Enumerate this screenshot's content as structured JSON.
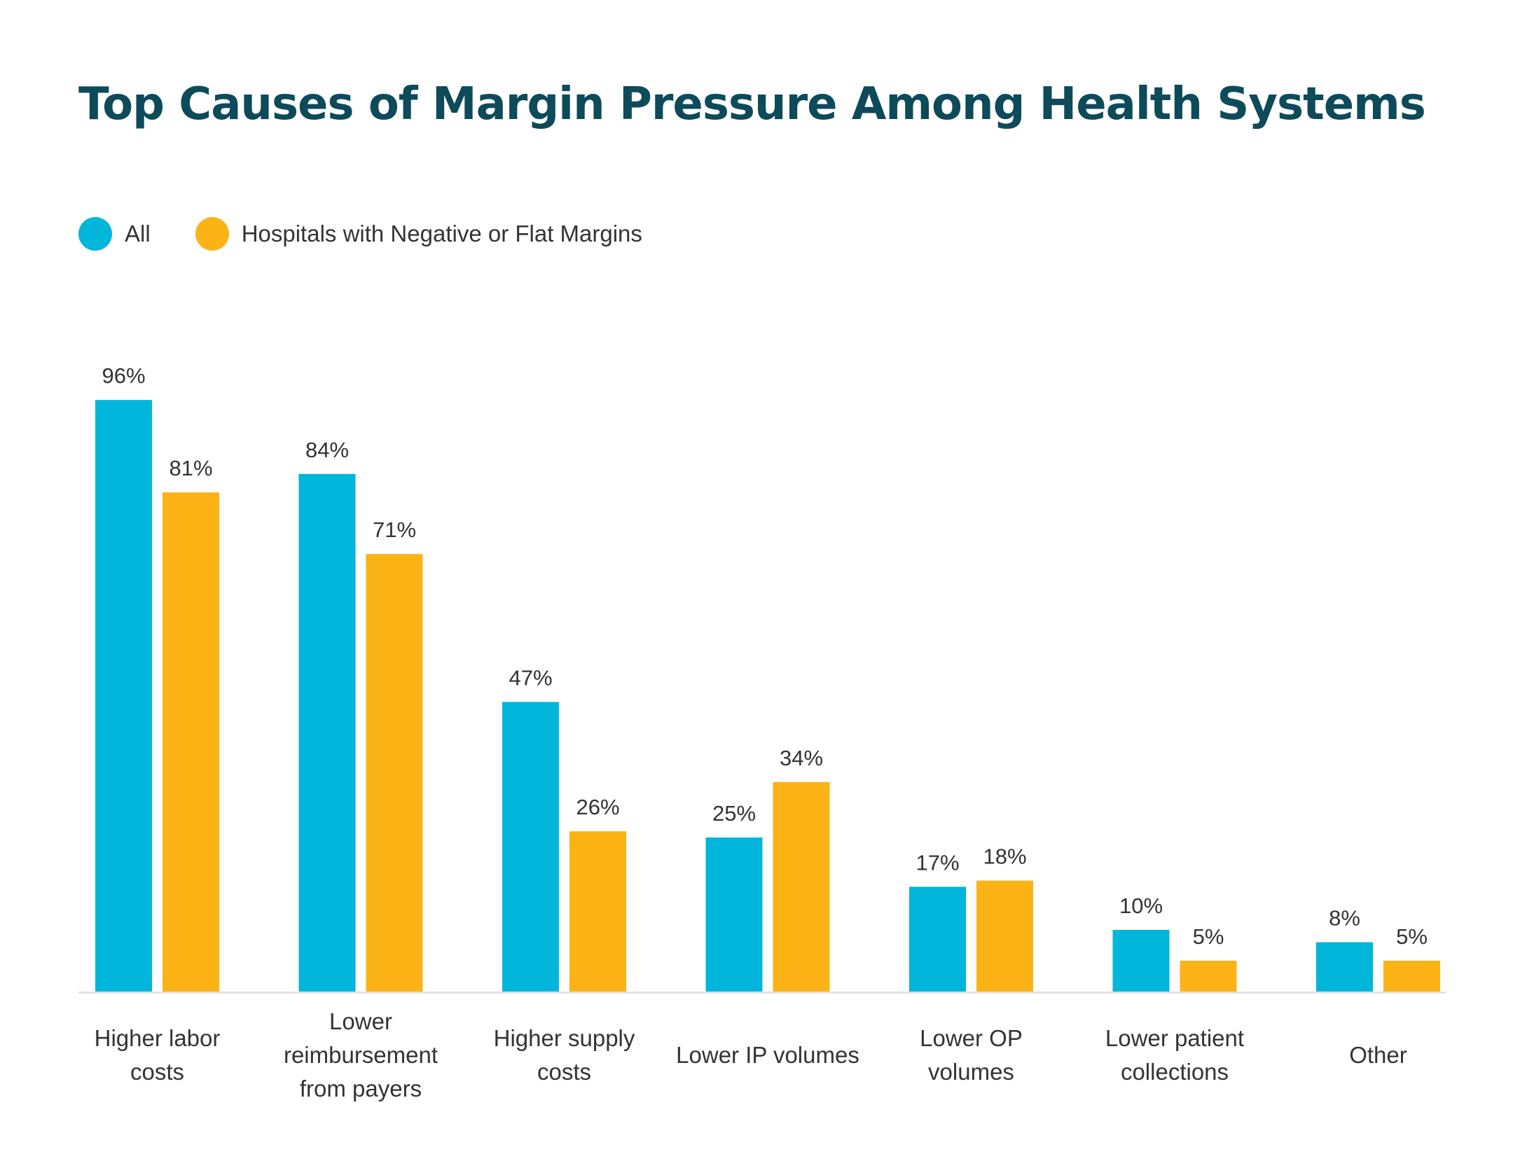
{
  "chart_data": {
    "type": "bar",
    "title": "Top Causes of Margin Pressure Among Health Systems",
    "categories": [
      [
        "Higher labor",
        "costs"
      ],
      [
        "Lower",
        "reimbursement",
        "from payers"
      ],
      [
        "Higher supply",
        "costs"
      ],
      [
        "Lower IP volumes"
      ],
      [
        "Lower OP",
        "volumes"
      ],
      [
        "Lower patient",
        "collections"
      ],
      [
        "Other"
      ]
    ],
    "series": [
      {
        "name": "All",
        "color": "#00b6da",
        "values": [
          96,
          84,
          47,
          25,
          17,
          10,
          8
        ]
      },
      {
        "name": "Hospitals with Negative or Flat Margins",
        "color": "#fcb316",
        "values": [
          81,
          71,
          26,
          34,
          18,
          5,
          5
        ]
      }
    ],
    "value_suffix": "%",
    "ylim": [
      0,
      100
    ],
    "grid": false,
    "legend_position": "top-left",
    "axis_color": "#e3e3e3"
  }
}
